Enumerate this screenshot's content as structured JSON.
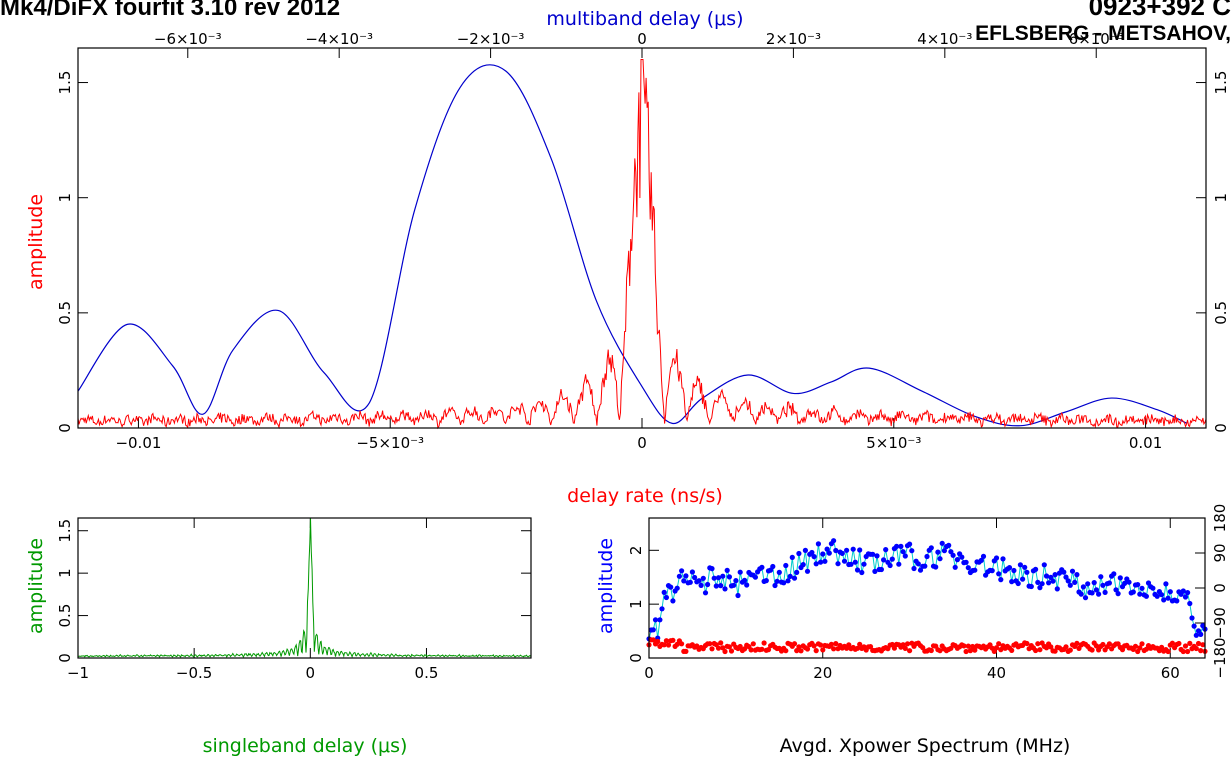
{
  "header": {
    "left_title": "Mk4/DiFX fourfit 3.10 rev 2012",
    "right_title": "0923+392 C",
    "right_subtitle": "EFLSBERG - METSAHOV,"
  },
  "chart_data": [
    {
      "id": "delay-rate-panel",
      "type": "line",
      "ylabel": "amplitude",
      "xlabel": "delay rate (ns/s)",
      "top_xlabel": "multiband delay (μs)",
      "xlim": [
        -0.0112,
        0.0112
      ],
      "ylim": [
        0,
        1.65
      ],
      "top_xlim": [
        -0.00745,
        0.00745
      ],
      "x_tick_labels": [
        "−0.01",
        "−5×10⁻³",
        "0",
        "5×10⁻³",
        "0.01"
      ],
      "x_ticks": [
        -0.01,
        -0.005,
        0,
        0.005,
        0.01
      ],
      "top_tick_labels": [
        "−6×10⁻³",
        "−4×10⁻³",
        "−2×10⁻³",
        "0",
        "2×10⁻³",
        "4×10⁻³",
        "6×10⁻³"
      ],
      "top_ticks": [
        -0.006,
        -0.004,
        -0.002,
        0,
        0.002,
        0.004,
        0.006
      ],
      "y_tick_labels": [
        "0",
        "0.5",
        "1",
        "1.5"
      ],
      "y_ticks": [
        0,
        0.5,
        1,
        1.5
      ],
      "series": [
        {
          "color": "#0000cc",
          "axis": "top",
          "x": [
            -0.00745,
            -0.0068,
            -0.0062,
            -0.0058,
            -0.0054,
            -0.0048,
            -0.0042,
            -0.0036,
            -0.003,
            -0.0024,
            -0.0018,
            -0.0012,
            -0.0006,
            0.0,
            0.0004,
            0.0008,
            0.0014,
            0.002,
            0.0025,
            0.003,
            0.0037,
            0.0044,
            0.005,
            0.0056,
            0.0062,
            0.0068,
            0.0072,
            0.0076,
            0.0082,
            0.0088,
            0.0094,
            0.01,
            0.0106,
            0.0112
          ],
          "y": [
            0.16,
            0.45,
            0.27,
            0.06,
            0.34,
            0.51,
            0.24,
            0.11,
            0.95,
            1.48,
            1.55,
            1.17,
            0.55,
            0.18,
            0.02,
            0.13,
            0.23,
            0.15,
            0.2,
            0.26,
            0.16,
            0.05,
            0.01,
            0.07,
            0.13,
            0.08,
            0.02,
            0.04,
            0.2,
            0.26,
            0.22,
            0.1,
            0.05,
            0.07
          ]
        },
        {
          "color": "#ff0000",
          "axis": "bottom",
          "peak": 1.6,
          "noise": 0.03
        }
      ]
    },
    {
      "id": "singleband-delay-panel",
      "type": "line",
      "ylabel": "amplitude",
      "xlabel": "singleband delay (μs)",
      "xlim": [
        -1,
        0.95
      ],
      "ylim": [
        0,
        1.65
      ],
      "x_tick_labels": [
        "−1",
        "−0.5",
        "0",
        "0.5"
      ],
      "x_ticks": [
        -1,
        -0.5,
        0,
        0.5
      ],
      "y_tick_labels": [
        "0",
        "0.5",
        "1",
        "1.5"
      ],
      "y_ticks": [
        0,
        0.5,
        1,
        1.5
      ],
      "series": [
        {
          "color": "#009900",
          "peak": 1.65,
          "noise": 0.03
        }
      ]
    },
    {
      "id": "xpower-spectrum-panel",
      "type": "scatter",
      "ylabel": "amplitude",
      "xlabel": "Avgd. Xpower Spectrum (MHz)",
      "xlim": [
        0,
        64
      ],
      "ylim": [
        0,
        2.6
      ],
      "x_tick_labels": [
        "0",
        "20",
        "40",
        "60"
      ],
      "x_ticks": [
        0,
        20,
        40,
        60
      ],
      "y_tick_labels": [
        "0",
        "1",
        "2"
      ],
      "y_ticks": [
        0,
        1,
        2
      ],
      "right_tick_labels": [
        "−180",
        "−90",
        "0",
        "90",
        "180"
      ],
      "right_ticks": [
        -180,
        -90,
        0,
        90,
        180
      ],
      "series": [
        {
          "color": "#0000ff",
          "line_color": "#00cccc",
          "x": [
            0,
            1,
            2,
            4,
            6,
            8,
            10,
            12,
            14,
            16,
            18,
            20,
            22,
            24,
            26,
            28,
            30,
            32,
            34,
            36,
            38,
            40,
            42,
            44,
            46,
            48,
            50,
            52,
            54,
            56,
            58,
            60,
            62,
            63,
            64
          ],
          "y": [
            0.4,
            0.55,
            1.15,
            1.45,
            1.4,
            1.5,
            1.35,
            1.45,
            1.55,
            1.6,
            1.8,
            2.0,
            1.95,
            1.8,
            1.75,
            1.85,
            1.9,
            1.8,
            2.0,
            1.8,
            1.7,
            1.65,
            1.6,
            1.5,
            1.55,
            1.45,
            1.35,
            1.3,
            1.35,
            1.45,
            1.25,
            1.2,
            1.0,
            0.55,
            0.5
          ]
        },
        {
          "color": "#ff0000",
          "level": 0.2
        }
      ]
    }
  ]
}
